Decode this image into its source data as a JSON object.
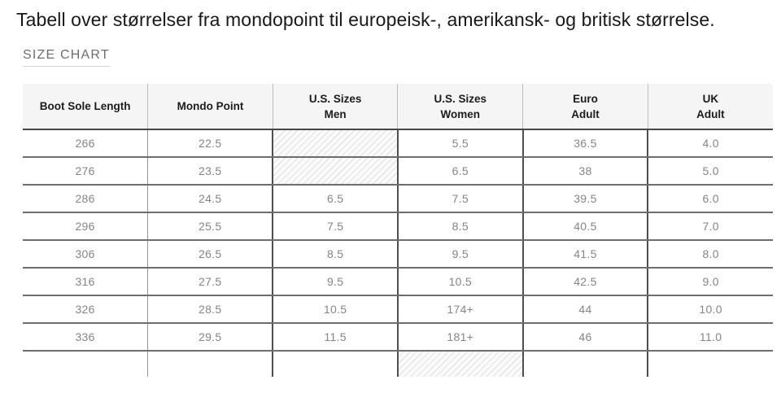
{
  "page": {
    "title": "Tabell over størrelser fra mondopoint til europeisk-, amerikansk- og britisk størrelse.",
    "section_label": "SIZE CHART"
  },
  "size_chart": {
    "columns": [
      {
        "line1": "Boot Sole Length",
        "line2": ""
      },
      {
        "line1": "Mondo Point",
        "line2": ""
      },
      {
        "line1": "U.S. Sizes",
        "line2": "Men"
      },
      {
        "line1": "U.S. Sizes",
        "line2": "Women"
      },
      {
        "line1": "Euro",
        "line2": "Adult"
      },
      {
        "line1": "UK",
        "line2": "Adult"
      }
    ],
    "rows": [
      {
        "cells": [
          "266",
          "22.5",
          "",
          "5.5",
          "36.5",
          "4.0"
        ],
        "hatched": [
          2
        ],
        "partial": false
      },
      {
        "cells": [
          "276",
          "23.5",
          "",
          "6.5",
          "38",
          "5.0"
        ],
        "hatched": [
          2
        ],
        "partial": false
      },
      {
        "cells": [
          "286",
          "24.5",
          "6.5",
          "7.5",
          "39.5",
          "6.0"
        ],
        "hatched": [],
        "partial": false
      },
      {
        "cells": [
          "296",
          "25.5",
          "7.5",
          "8.5",
          "40.5",
          "7.0"
        ],
        "hatched": [],
        "partial": false
      },
      {
        "cells": [
          "306",
          "26.5",
          "8.5",
          "9.5",
          "41.5",
          "8.0"
        ],
        "hatched": [],
        "partial": false
      },
      {
        "cells": [
          "316",
          "27.5",
          "9.5",
          "10.5",
          "42.5",
          "9.0"
        ],
        "hatched": [],
        "partial": false
      },
      {
        "cells": [
          "326",
          "28.5",
          "10.5",
          "174+",
          "44",
          "10.0"
        ],
        "hatched": [],
        "partial": false
      },
      {
        "cells": [
          "336",
          "29.5",
          "11.5",
          "181+",
          "46",
          "11.0"
        ],
        "hatched": [],
        "partial": false
      },
      {
        "cells": [
          "",
          "",
          "",
          "",
          "",
          ""
        ],
        "hatched": [
          3
        ],
        "partial": true
      }
    ]
  },
  "colors": {
    "header_background": "#f5f5f5",
    "header_text": "#1c1c1c",
    "cell_text": "#858585",
    "title_text": "#191919",
    "section_label_text": "#6e6e6e",
    "row_border": "#6d6d6d",
    "column_border": "#4e4e4e",
    "hatch_stripe": "#e8e8e8"
  }
}
